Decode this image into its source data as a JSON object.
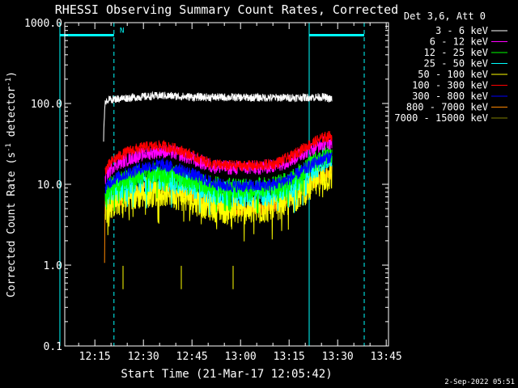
{
  "chart_data": {
    "type": "line",
    "title": "RHESSI Observing Summary Count Rates, Corrected",
    "xlabel": "Start Time (21-Mar-17 12:05:42)",
    "ylabel_main": "Corrected Count Rate (s",
    "ylabel_sup1": "-1",
    "ylabel_mid": " detector",
    "ylabel_sup2": "-1",
    "ylabel_end": ")",
    "yscale": "log",
    "ylim": [
      0.1,
      1000.0
    ],
    "xlim_minutes": [
      0,
      100
    ],
    "x_unit": "minutes since 12:05:42",
    "yticks": [
      {
        "value": 0.1,
        "label": "0.1"
      },
      {
        "value": 1.0,
        "label": "1.0"
      },
      {
        "value": 10.0,
        "label": "10.0"
      },
      {
        "value": 100.0,
        "label": "100.0"
      },
      {
        "value": 1000.0,
        "label": "1000.0"
      }
    ],
    "xticks": [
      {
        "value": 9.3,
        "label": "12:15"
      },
      {
        "value": 24.3,
        "label": "12:30"
      },
      {
        "value": 39.3,
        "label": "12:45"
      },
      {
        "value": 54.3,
        "label": "13:00"
      },
      {
        "value": 69.3,
        "label": "13:15"
      },
      {
        "value": 84.3,
        "label": "13:30"
      },
      {
        "value": 99.3,
        "label": "13:45"
      }
    ],
    "legend_title": "Det 3,6, Att 0",
    "legend_position": "top-right",
    "series": [
      {
        "name": "3 - 6 keV",
        "color": "#ffffff",
        "x": [
          12,
          12.6,
          20,
          30,
          40,
          50,
          60,
          70,
          80,
          82.5
        ],
        "y": [
          35,
          110,
          118,
          125,
          120,
          119,
          118,
          118,
          120,
          112
        ],
        "noise": 0.05
      },
      {
        "name": "6 - 12 keV",
        "color": "#ff00ff",
        "x": [
          12.5,
          15,
          20,
          25,
          30,
          35,
          40,
          45,
          50,
          55,
          60,
          65,
          70,
          75,
          80,
          82.5
        ],
        "y": [
          12,
          17,
          21,
          24,
          26,
          24,
          20,
          17,
          16,
          16,
          16,
          17,
          20,
          26,
          32,
          33
        ],
        "noise": 0.09
      },
      {
        "name": "12 - 25 keV",
        "color": "#00ff00",
        "x": [
          12.5,
          15,
          20,
          25,
          30,
          35,
          40,
          45,
          50,
          55,
          60,
          65,
          70,
          75,
          80,
          82.5
        ],
        "y": [
          8,
          10,
          12,
          13.5,
          14,
          12.5,
          11,
          9.5,
          9,
          9,
          9,
          9.5,
          11,
          16,
          22,
          24
        ],
        "noise": 0.13
      },
      {
        "name": "25 - 50 keV",
        "color": "#00ffff",
        "x": [
          12.5,
          15,
          20,
          25,
          30,
          35,
          40,
          45,
          50,
          55,
          60,
          65,
          70,
          75,
          80,
          82.5
        ],
        "y": [
          7,
          8.5,
          10,
          11.5,
          12,
          11,
          9.5,
          8,
          7.5,
          7.5,
          7.5,
          8,
          9.5,
          14,
          20,
          22
        ],
        "noise": 0.16
      },
      {
        "name": "50 - 100 keV",
        "color": "#ffff00",
        "x": [
          12.5,
          15,
          20,
          25,
          30,
          35,
          40,
          45,
          50,
          55,
          60,
          65,
          70,
          75,
          80,
          82.5
        ],
        "y": [
          5,
          6,
          7,
          8,
          8.5,
          7.5,
          6.5,
          5.5,
          5,
          5,
          5,
          5.5,
          6.5,
          9,
          12,
          13
        ],
        "noise": 0.2
      },
      {
        "name": "100 - 300 keV",
        "color": "#ff0000",
        "x": [
          12.5,
          15,
          20,
          25,
          30,
          35,
          40,
          45,
          50,
          55,
          60,
          65,
          70,
          75,
          80,
          82.5
        ],
        "y": [
          15,
          20,
          26,
          29,
          30,
          27,
          22,
          18,
          17,
          17,
          17,
          18,
          22,
          30,
          38,
          40
        ],
        "noise": 0.07
      },
      {
        "name": "300 - 800 keV",
        "color": "#0000ff",
        "x": [
          12.5,
          15,
          20,
          25,
          30,
          35,
          40,
          45,
          50,
          55,
          60,
          65,
          70,
          75,
          80,
          82.5
        ],
        "y": [
          9,
          11.5,
          14,
          16.5,
          17.5,
          15.5,
          13,
          10.5,
          9.5,
          9.5,
          9.5,
          10,
          12,
          16,
          21,
          22
        ],
        "noise": 0.08
      },
      {
        "name": "800 - 7000 keV",
        "color": "#ff8800",
        "x": [
          12.3,
          12.5,
          15,
          20,
          25,
          30,
          35,
          40,
          45,
          50,
          55,
          60,
          65,
          70,
          75,
          80,
          82.5
        ],
        "y": [
          1.0,
          6,
          6,
          7.5,
          9,
          9.5,
          8.5,
          7,
          5.5,
          5,
          5,
          5,
          5.5,
          6.5,
          9.5,
          13,
          14
        ],
        "noise": 0.09
      },
      {
        "name": "7000 - 15000 keV",
        "color": "#808000",
        "x": [
          18,
          36,
          52
        ],
        "y": [
          0.7,
          0.7,
          0.7
        ],
        "spikes": true
      }
    ],
    "vertical_lines": [
      {
        "x": -1.5,
        "color": "#00ffff",
        "style": "solid"
      },
      {
        "x": 15.2,
        "color": "#00ffff",
        "style": "dashed"
      },
      {
        "x": 75.5,
        "color": "#00ffff",
        "style": "solid"
      },
      {
        "x": 92.5,
        "color": "#00ffff",
        "style": "dashed"
      }
    ],
    "flag_bars": [
      {
        "x_start": -1.5,
        "x_end": 15.2,
        "y": 700,
        "color": "#00ffff"
      },
      {
        "x_start": 75.5,
        "x_end": 92.5,
        "y": 700,
        "color": "#00ffff"
      }
    ],
    "annotations": [
      {
        "x": 17,
        "y": 750,
        "text": "N",
        "color": "#00ffff"
      }
    ]
  },
  "footer": {
    "timestamp": "2-Sep-2022 05:51"
  }
}
